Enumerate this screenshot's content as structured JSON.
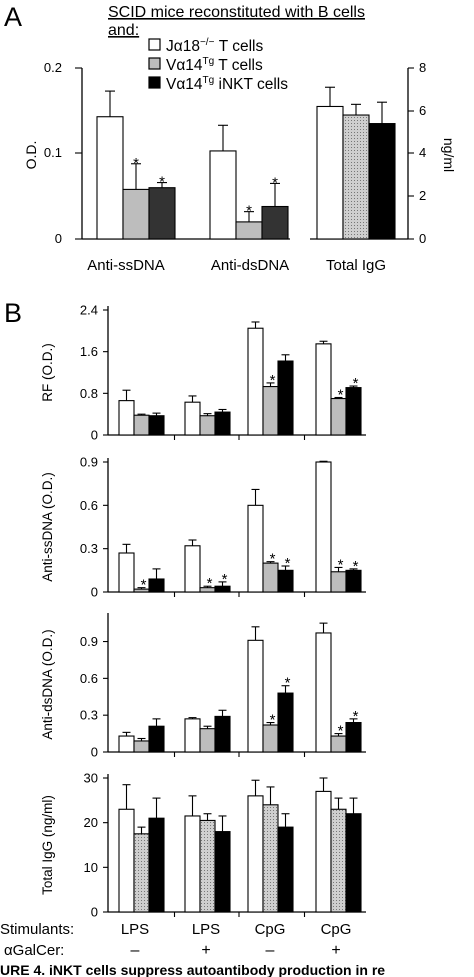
{
  "panel_a": {
    "label": "A",
    "legend_title_1": "SCID mice reconstituted with B cells",
    "legend_title_2": "and:",
    "left_yaxis": {
      "label": "O.D.",
      "ticks": [
        "0",
        "0.1",
        "0.2"
      ]
    },
    "right_yaxis": {
      "label": "ng/ml",
      "ticks": [
        "0",
        "2",
        "4",
        "6",
        "8"
      ]
    }
  },
  "panel_b": {
    "label": "B",
    "stimulants_label": "Stimulants:",
    "agalcer_label": "αGalCer:",
    "stimulants": [
      "LPS",
      "LPS",
      "CpG",
      "CpG"
    ],
    "agalcer": [
      "–",
      "+",
      "–",
      "+"
    ]
  },
  "caption_fragment": "URE 4.  iNKT cells suppress autoantibody production in re",
  "chart_data": [
    {
      "type": "bar",
      "panel": "A",
      "categories": [
        "Anti-ssDNA",
        "Anti-dsDNA"
      ],
      "series": [
        {
          "name": "Jα18−/− T cells",
          "values": [
            0.143,
            0.103
          ],
          "errors": [
            0.03,
            0.03
          ],
          "significant": [
            false,
            false
          ],
          "color": "#ffffff"
        },
        {
          "name": "Vα14Tg T cells",
          "values": [
            0.058,
            0.02
          ],
          "errors": [
            0.03,
            0.012
          ],
          "significant": [
            true,
            true
          ],
          "color": "#bdbdbd"
        },
        {
          "name": "Vα14Tg iNKT cells",
          "values": [
            0.06,
            0.038
          ],
          "errors": [
            0.006,
            0.027
          ],
          "significant": [
            true,
            true
          ],
          "color": "#333333"
        }
      ],
      "ylabel": "O.D.",
      "ylim": [
        0,
        0.2
      ]
    },
    {
      "type": "bar",
      "panel": "A",
      "categories": [
        "Total IgG"
      ],
      "series": [
        {
          "name": "Jα18−/− T cells",
          "values": [
            6.2
          ],
          "errors": [
            0.9
          ],
          "color": "#ffffff"
        },
        {
          "name": "Vα14Tg T cells",
          "values": [
            5.8
          ],
          "errors": [
            0.5
          ],
          "color": "#dddddd"
        },
        {
          "name": "Vα14Tg iNKT cells",
          "values": [
            5.4
          ],
          "errors": [
            1.0
          ],
          "color": "#000000"
        }
      ],
      "ylabel": "ng/ml",
      "ylim": [
        0,
        8
      ]
    },
    {
      "type": "bar",
      "panel": "B",
      "ylabel": "RF (O.D.)",
      "yticks": [
        "0",
        "0.8",
        "1.6",
        "2.4"
      ],
      "ylim": [
        0,
        2.4
      ],
      "categories": [
        "LPS –",
        "LPS +",
        "CpG –",
        "CpG +"
      ],
      "series": [
        {
          "name": "Jα18−/− T cells",
          "values": [
            0.66,
            0.63,
            2.05,
            1.75
          ],
          "errors": [
            0.2,
            0.12,
            0.12,
            0.05
          ],
          "significant": [
            false,
            false,
            false,
            false
          ]
        },
        {
          "name": "Vα14Tg T cells",
          "values": [
            0.38,
            0.37,
            0.93,
            0.7
          ],
          "errors": [
            0.02,
            0.04,
            0.07,
            0.02
          ],
          "significant": [
            false,
            false,
            true,
            true
          ]
        },
        {
          "name": "Vα14Tg iNKT cells",
          "values": [
            0.37,
            0.44,
            1.42,
            0.91
          ],
          "errors": [
            0.05,
            0.05,
            0.12,
            0.03
          ],
          "significant": [
            false,
            false,
            false,
            true
          ]
        }
      ]
    },
    {
      "type": "bar",
      "panel": "B",
      "ylabel": "Anti-ssDNA (O.D.)",
      "yticks": [
        "0",
        "0.3",
        "0.6",
        "0.9"
      ],
      "ylim": [
        0,
        0.9
      ],
      "categories": [
        "LPS –",
        "LPS +",
        "CpG –",
        "CpG +"
      ],
      "series": [
        {
          "name": "Jα18−/− T cells",
          "values": [
            0.27,
            0.32,
            0.6,
            0.9
          ],
          "errors": [
            0.06,
            0.04,
            0.11,
            0.005
          ],
          "significant": [
            false,
            false,
            false,
            false
          ]
        },
        {
          "name": "Vα14Tg T cells",
          "values": [
            0.02,
            0.03,
            0.2,
            0.14
          ],
          "errors": [
            0.01,
            0.01,
            0.01,
            0.03
          ],
          "significant": [
            true,
            true,
            true,
            true
          ]
        },
        {
          "name": "Vα14Tg iNKT cells",
          "values": [
            0.09,
            0.04,
            0.15,
            0.15
          ],
          "errors": [
            0.07,
            0.03,
            0.03,
            0.01
          ],
          "significant": [
            false,
            true,
            true,
            true
          ]
        }
      ]
    },
    {
      "type": "bar",
      "panel": "B",
      "ylabel": "Anti-dsDNA (O.D.)",
      "yticks": [
        "0",
        "0.3",
        "0.6",
        "0.9"
      ],
      "ylim": [
        0,
        1.1
      ],
      "categories": [
        "LPS –",
        "LPS +",
        "CpG –",
        "CpG +"
      ],
      "series": [
        {
          "name": "Jα18−/− T cells",
          "values": [
            0.13,
            0.27,
            0.91,
            0.97
          ],
          "errors": [
            0.03,
            0.01,
            0.11,
            0.08
          ],
          "significant": [
            false,
            false,
            false,
            false
          ]
        },
        {
          "name": "Vα14Tg T cells",
          "values": [
            0.09,
            0.19,
            0.22,
            0.13
          ],
          "errors": [
            0.02,
            0.02,
            0.02,
            0.02
          ],
          "significant": [
            false,
            false,
            true,
            true
          ]
        },
        {
          "name": "Vα14Tg iNKT cells",
          "values": [
            0.21,
            0.29,
            0.48,
            0.24
          ],
          "errors": [
            0.06,
            0.05,
            0.06,
            0.03
          ],
          "significant": [
            false,
            false,
            true,
            true
          ]
        }
      ]
    },
    {
      "type": "bar",
      "panel": "B",
      "ylabel": "Total IgG (ng/ml)",
      "yticks": [
        "0",
        "10",
        "20",
        "30"
      ],
      "ylim": [
        0,
        30
      ],
      "categories": [
        "LPS –",
        "LPS +",
        "CpG –",
        "CpG +"
      ],
      "series": [
        {
          "name": "Jα18−/− T cells",
          "values": [
            23,
            21.5,
            26,
            27
          ],
          "errors": [
            5.5,
            4.5,
            3.5,
            3
          ],
          "significant": [
            false,
            false,
            false,
            false
          ]
        },
        {
          "name": "Vα14Tg T cells",
          "values": [
            17.5,
            20.5,
            24,
            23
          ],
          "errors": [
            1.5,
            1.5,
            4,
            2.5
          ],
          "significant": [
            false,
            false,
            false,
            false
          ]
        },
        {
          "name": "Vα14Tg iNKT cells",
          "values": [
            21,
            18,
            19,
            22
          ],
          "errors": [
            4.5,
            3.5,
            3,
            3.5
          ],
          "significant": [
            false,
            false,
            false,
            false
          ]
        }
      ]
    }
  ]
}
